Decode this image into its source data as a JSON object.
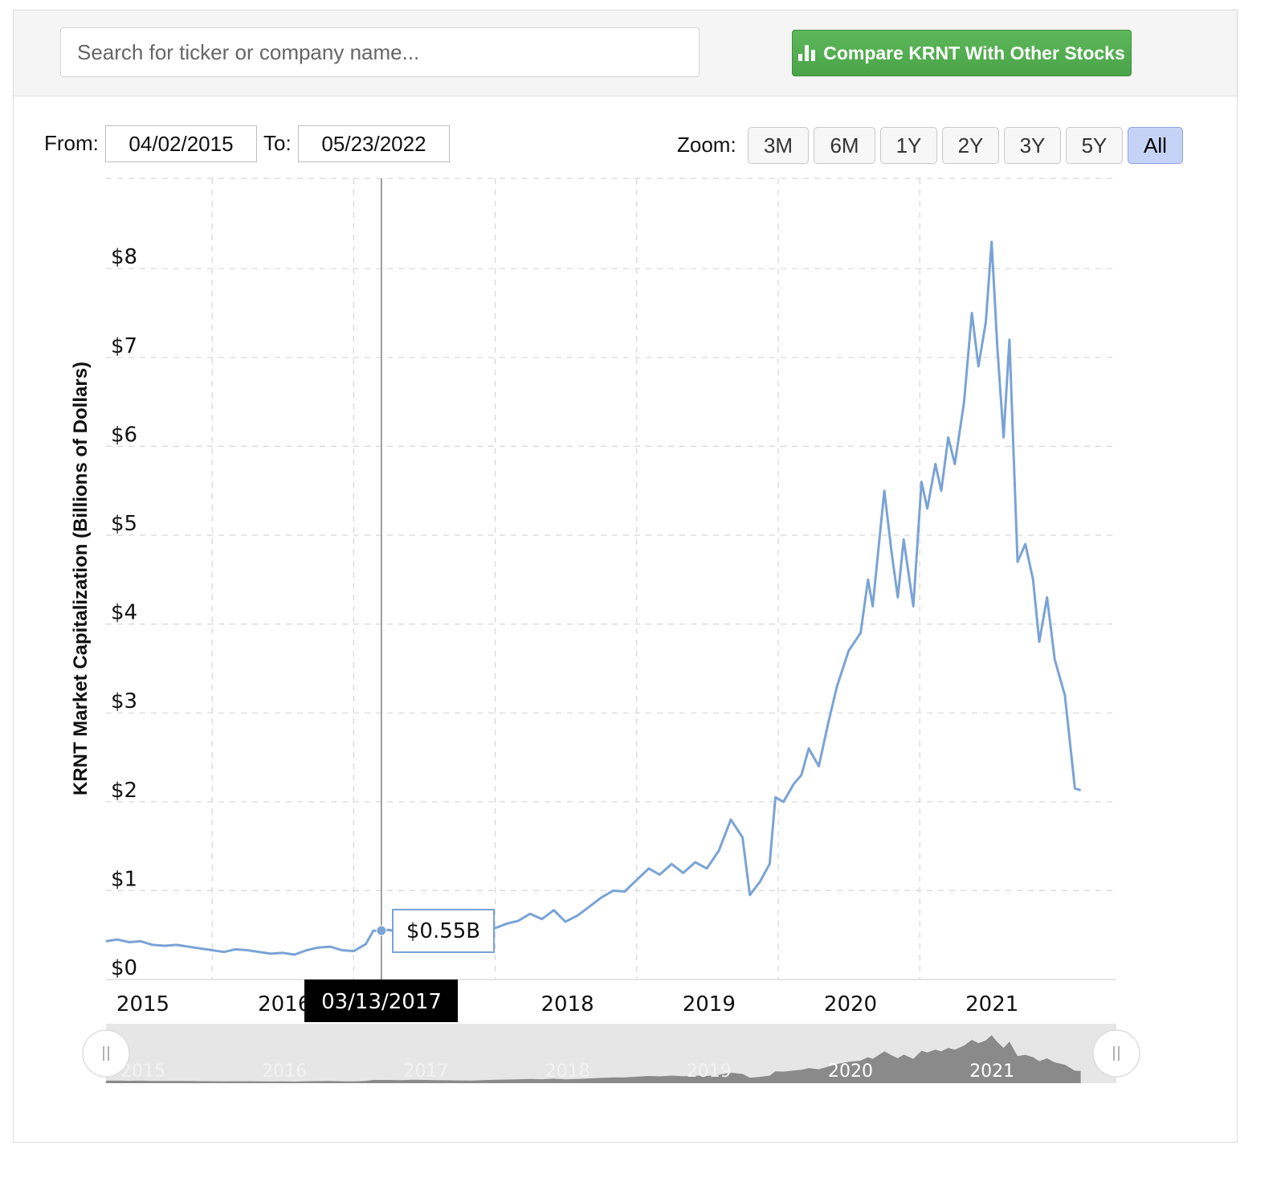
{
  "search": {
    "placeholder": "Search for ticker or company name..."
  },
  "compare_button": {
    "label": "Compare KRNT With Other Stocks",
    "icon": "bar-chart-icon",
    "color": "#4cae4a"
  },
  "range": {
    "from_label": "From:",
    "from_value": "04/02/2015",
    "to_label": "To:",
    "to_value": "05/23/2022"
  },
  "zoom": {
    "label": "Zoom:",
    "options": [
      "3M",
      "6M",
      "1Y",
      "2Y",
      "3Y",
      "5Y",
      "All"
    ],
    "active": "All",
    "active_color": "#c5d3f6"
  },
  "tooltip": {
    "value": "$0.55B",
    "date": "03/13/2017"
  },
  "navigator": {
    "left_handle_icon": "drag-handle-icon",
    "right_handle_icon": "drag-handle-icon"
  },
  "chart_data": {
    "type": "line",
    "title": "",
    "ylabel": "KRNT Market Capitalization (Billions of Dollars)",
    "xlabel": "",
    "ylim": [
      0,
      9
    ],
    "y_ticks": [
      "$0",
      "$1",
      "$2",
      "$3",
      "$4",
      "$5",
      "$6",
      "$7",
      "$8"
    ],
    "x_ticks": [
      "2015",
      "2016",
      "2017",
      "2018",
      "2019",
      "2020",
      "2021"
    ],
    "grid": true,
    "line_color": "#7aa3d6",
    "series": [
      {
        "values": [
          [
            "2015-04-02",
            0.43
          ],
          [
            "2015-05-01",
            0.45
          ],
          [
            "2015-06-01",
            0.42
          ],
          [
            "2015-07-01",
            0.43
          ],
          [
            "2015-08-01",
            0.39
          ],
          [
            "2015-09-01",
            0.38
          ],
          [
            "2015-10-01",
            0.39
          ],
          [
            "2015-11-01",
            0.37
          ],
          [
            "2015-12-01",
            0.35
          ],
          [
            "2016-01-01",
            0.33
          ],
          [
            "2016-02-01",
            0.31
          ],
          [
            "2016-03-01",
            0.34
          ],
          [
            "2016-04-01",
            0.33
          ],
          [
            "2016-05-01",
            0.31
          ],
          [
            "2016-06-01",
            0.29
          ],
          [
            "2016-07-01",
            0.3
          ],
          [
            "2016-08-01",
            0.28
          ],
          [
            "2016-09-01",
            0.33
          ],
          [
            "2016-10-01",
            0.36
          ],
          [
            "2016-11-01",
            0.37
          ],
          [
            "2016-12-01",
            0.33
          ],
          [
            "2017-01-01",
            0.32
          ],
          [
            "2017-02-01",
            0.4
          ],
          [
            "2017-02-20",
            0.55
          ],
          [
            "2017-03-13",
            0.55
          ],
          [
            "2017-04-01",
            0.56
          ],
          [
            "2017-05-01",
            0.52
          ],
          [
            "2017-06-01",
            0.58
          ],
          [
            "2017-07-01",
            0.55
          ],
          [
            "2017-08-01",
            0.53
          ],
          [
            "2017-09-01",
            0.5
          ],
          [
            "2017-10-01",
            0.47
          ],
          [
            "2017-11-01",
            0.45
          ],
          [
            "2017-12-01",
            0.53
          ],
          [
            "2018-01-01",
            0.58
          ],
          [
            "2018-02-01",
            0.63
          ],
          [
            "2018-03-01",
            0.66
          ],
          [
            "2018-04-01",
            0.74
          ],
          [
            "2018-05-01",
            0.68
          ],
          [
            "2018-06-01",
            0.78
          ],
          [
            "2018-07-01",
            0.65
          ],
          [
            "2018-08-01",
            0.72
          ],
          [
            "2018-09-01",
            0.82
          ],
          [
            "2018-10-01",
            0.92
          ],
          [
            "2018-11-01",
            1.0
          ],
          [
            "2018-12-01",
            0.99
          ],
          [
            "2019-01-01",
            1.12
          ],
          [
            "2019-02-01",
            1.25
          ],
          [
            "2019-03-01",
            1.18
          ],
          [
            "2019-04-01",
            1.3
          ],
          [
            "2019-05-01",
            1.2
          ],
          [
            "2019-06-01",
            1.32
          ],
          [
            "2019-07-01",
            1.25
          ],
          [
            "2019-08-01",
            1.45
          ],
          [
            "2019-09-01",
            1.8
          ],
          [
            "2019-10-01",
            1.6
          ],
          [
            "2019-10-20",
            0.95
          ],
          [
            "2019-11-15",
            1.1
          ],
          [
            "2019-12-10",
            1.3
          ],
          [
            "2019-12-25",
            2.05
          ],
          [
            "2020-01-15",
            2.0
          ],
          [
            "2020-02-10",
            2.2
          ],
          [
            "2020-03-01",
            2.3
          ],
          [
            "2020-03-20",
            2.6
          ],
          [
            "2020-04-15",
            2.4
          ],
          [
            "2020-05-10",
            2.9
          ],
          [
            "2020-06-01",
            3.3
          ],
          [
            "2020-07-01",
            3.7
          ],
          [
            "2020-08-01",
            3.9
          ],
          [
            "2020-08-20",
            4.5
          ],
          [
            "2020-09-01",
            4.2
          ],
          [
            "2020-10-01",
            5.5
          ],
          [
            "2020-10-20",
            4.8
          ],
          [
            "2020-11-05",
            4.3
          ],
          [
            "2020-11-20",
            4.95
          ],
          [
            "2020-12-15",
            4.2
          ],
          [
            "2021-01-05",
            5.6
          ],
          [
            "2021-01-20",
            5.3
          ],
          [
            "2021-02-10",
            5.8
          ],
          [
            "2021-02-25",
            5.5
          ],
          [
            "2021-03-15",
            6.1
          ],
          [
            "2021-04-01",
            5.8
          ],
          [
            "2021-04-25",
            6.5
          ],
          [
            "2021-05-15",
            7.5
          ],
          [
            "2021-06-01",
            6.9
          ],
          [
            "2021-06-20",
            7.4
          ],
          [
            "2021-07-05",
            8.3
          ],
          [
            "2021-07-20",
            7.1
          ],
          [
            "2021-08-05",
            6.1
          ],
          [
            "2021-08-20",
            7.2
          ],
          [
            "2021-09-10",
            4.7
          ],
          [
            "2021-09-30",
            4.9
          ],
          [
            "2021-10-20",
            4.5
          ],
          [
            "2021-11-05",
            3.8
          ],
          [
            "2021-11-25",
            4.3
          ],
          [
            "2021-12-15",
            3.6
          ],
          [
            "2022-01-10",
            3.2
          ],
          [
            "2022-02-05",
            2.15
          ],
          [
            "2022-02-20",
            2.13
          ]
        ]
      }
    ],
    "navigator": {
      "x_ticks": [
        "2015",
        "2016",
        "2017",
        "2018",
        "2019",
        "2020",
        "2021"
      ]
    }
  }
}
